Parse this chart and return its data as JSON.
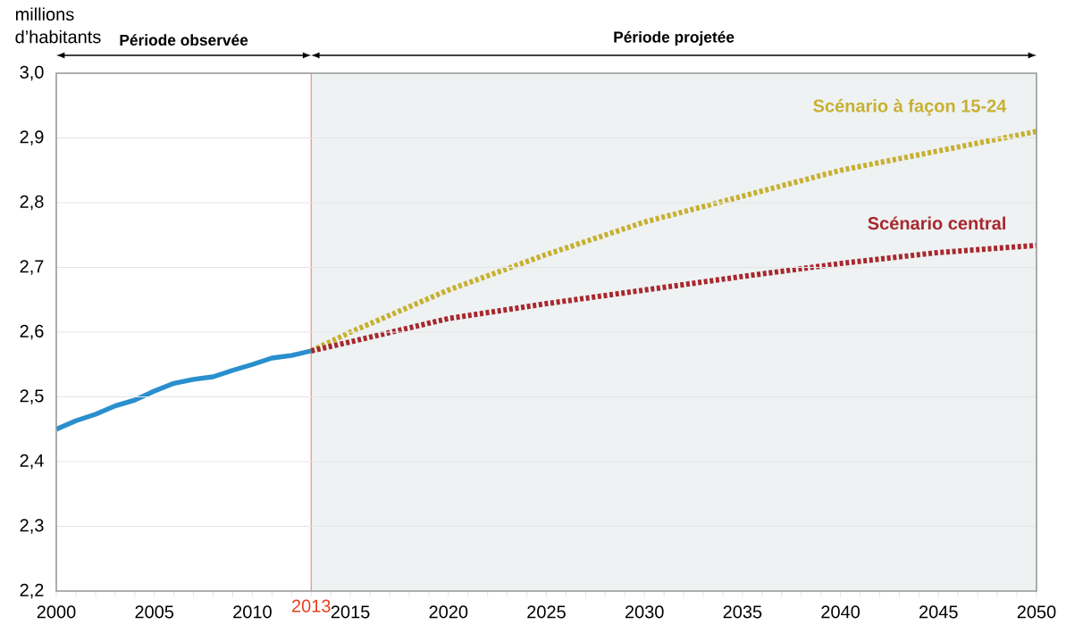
{
  "chart_data": {
    "type": "line",
    "ylabel": "millions d’habitants",
    "xlim": [
      2000,
      2050
    ],
    "ylim": [
      2.2,
      3.0
    ],
    "xticks": [
      2000,
      2005,
      2010,
      2015,
      2020,
      2025,
      2030,
      2035,
      2040,
      2045,
      2050
    ],
    "yticks": [
      {
        "value": 2.2,
        "label": "2,2"
      },
      {
        "value": 2.3,
        "label": "2,3"
      },
      {
        "value": 2.4,
        "label": "2,4"
      },
      {
        "value": 2.5,
        "label": "2,5"
      },
      {
        "value": 2.6,
        "label": "2,6"
      },
      {
        "value": 2.7,
        "label": "2,7"
      },
      {
        "value": 2.8,
        "label": "2,8"
      },
      {
        "value": 2.9,
        "label": "2,9"
      },
      {
        "value": 3.0,
        "label": "3,0"
      }
    ],
    "grid": "y",
    "marker": "none",
    "series": [
      {
        "color": "#2a8fce",
        "line_style": "solid",
        "x": [
          2000,
          2001,
          2002,
          2003,
          2004,
          2005,
          2006,
          2007,
          2008,
          2009,
          2010,
          2011,
          2012,
          2013
        ],
        "values": [
          2.45,
          2.463,
          2.473,
          2.486,
          2.495,
          2.509,
          2.521,
          2.527,
          2.531,
          2.541,
          2.55,
          2.56,
          2.564,
          2.571
        ]
      },
      {
        "name": "Scénario à façon 15-24",
        "color": "#c8b030",
        "line_style": "dotted",
        "x": [
          2013,
          2015,
          2020,
          2025,
          2030,
          2035,
          2040,
          2045,
          2050
        ],
        "values": [
          2.571,
          2.6,
          2.665,
          2.72,
          2.77,
          2.81,
          2.85,
          2.88,
          2.91
        ]
      },
      {
        "name": "Scénario central",
        "color": "#a8282e",
        "line_style": "dotted",
        "x": [
          2013,
          2015,
          2020,
          2025,
          2030,
          2035,
          2040,
          2045,
          2050
        ],
        "values": [
          2.571,
          2.585,
          2.621,
          2.644,
          2.665,
          2.686,
          2.706,
          2.723,
          2.734
        ]
      }
    ],
    "ref_lines": [
      {
        "axis": "x",
        "value": 2013,
        "label": "2013",
        "color": "#e8401c"
      }
    ],
    "annotations": [
      "Période observée"
    ],
    "bands": [
      {
        "axis": "x",
        "from": 2013,
        "to": 2050,
        "label": "Période projetée",
        "color": "#eef2f3"
      }
    ]
  }
}
